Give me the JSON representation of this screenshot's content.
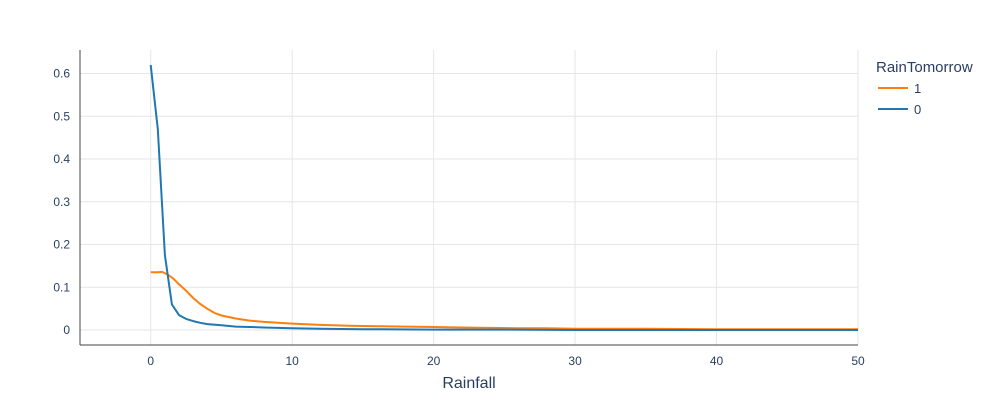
{
  "chart_data": {
    "type": "line",
    "xlabel": "Rainfall",
    "ylabel": "",
    "xlim": [
      -5,
      50
    ],
    "ylim": [
      -0.035,
      0.655
    ],
    "xticks": [
      0,
      10,
      20,
      30,
      40,
      50
    ],
    "yticks": [
      0,
      0.1,
      0.2,
      0.3,
      0.4,
      0.5,
      0.6
    ],
    "xtick_labels": [
      "0",
      "10",
      "20",
      "30",
      "40",
      "50"
    ],
    "ytick_labels": [
      "0",
      "0.1",
      "0.2",
      "0.3",
      "0.4",
      "0.5",
      "0.6"
    ],
    "grid": true,
    "legend": {
      "title": "RainTomorrow",
      "placement": "top-right outside"
    },
    "series": [
      {
        "name": "1",
        "color": "#ff7f0e",
        "x": [
          0,
          0.5,
          0.8,
          1.2,
          1.6,
          2,
          2.5,
          3,
          3.5,
          4,
          4.5,
          5,
          6,
          7,
          8,
          9,
          10,
          12,
          14,
          16,
          18,
          20,
          22,
          24,
          26,
          28,
          30,
          35,
          40,
          45,
          50
        ],
        "y": [
          0.135,
          0.135,
          0.136,
          0.13,
          0.12,
          0.107,
          0.092,
          0.075,
          0.061,
          0.05,
          0.04,
          0.034,
          0.027,
          0.022,
          0.019,
          0.017,
          0.015,
          0.012,
          0.01,
          0.009,
          0.008,
          0.007,
          0.006,
          0.005,
          0.004,
          0.004,
          0.003,
          0.003,
          0.002,
          0.002,
          0.002
        ]
      },
      {
        "name": "0",
        "color": "#1f77b4",
        "x": [
          0,
          0.5,
          1,
          1.5,
          2,
          2.5,
          3,
          3.5,
          4,
          5,
          6,
          7,
          8,
          10,
          12,
          15,
          20,
          25,
          30,
          40,
          50
        ],
        "y": [
          0.62,
          0.47,
          0.175,
          0.06,
          0.035,
          0.026,
          0.021,
          0.017,
          0.014,
          0.011,
          0.008,
          0.007,
          0.006,
          0.004,
          0.003,
          0.002,
          0.001,
          0.001,
          0,
          0,
          0
        ]
      }
    ]
  }
}
